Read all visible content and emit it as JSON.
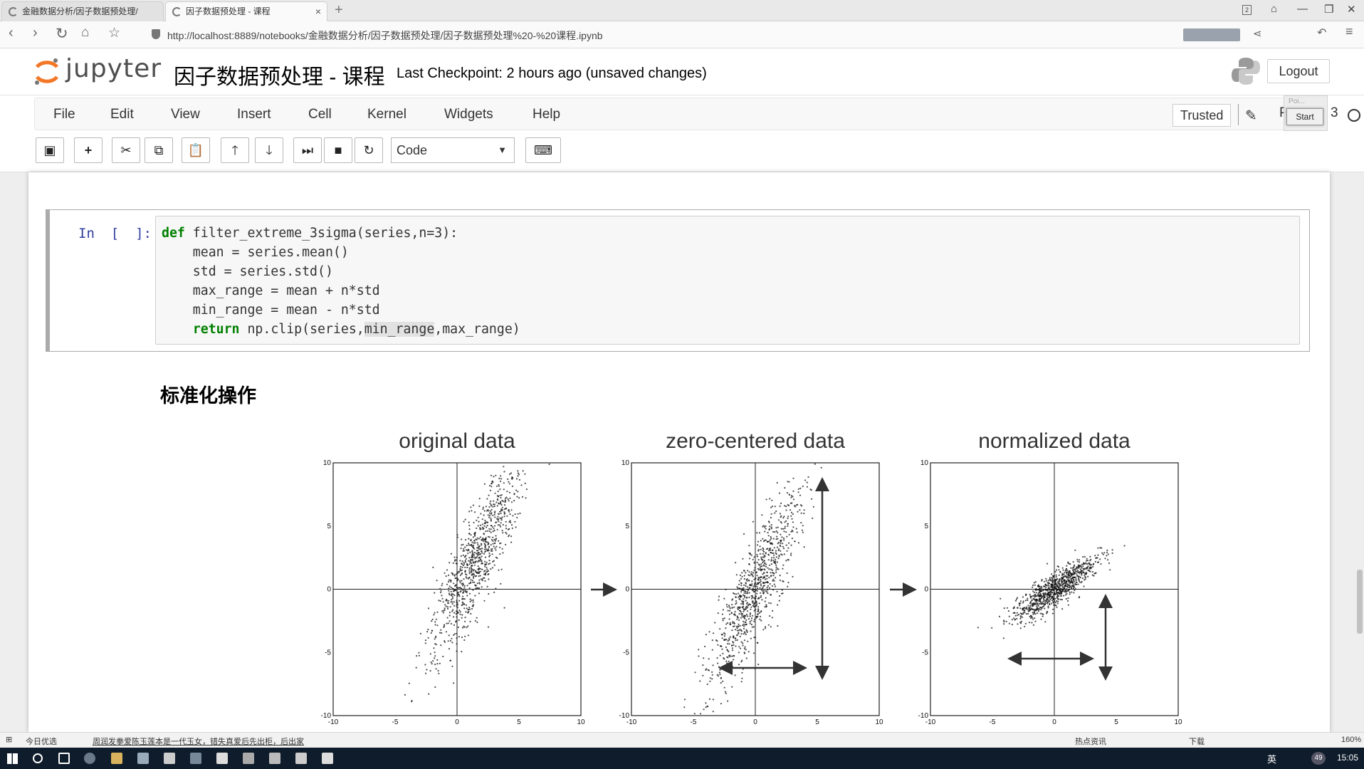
{
  "browser": {
    "tabs": [
      {
        "label": "金融数据分析/因子数据预处理/"
      },
      {
        "label": "因子数据预处理 - 课程"
      }
    ],
    "url": "http://localhost:8889/notebooks/金融数据分析/因子数据预处理/因子数据预处理%20-%20课程.ipynb"
  },
  "header": {
    "logo_text": "jupyter",
    "notebook_title": "因子数据预处理 - 课程",
    "checkpoint": "Last Checkpoint: 2 hours ago (unsaved changes)",
    "logout_label": "Logout"
  },
  "menu": {
    "items": [
      "File",
      "Edit",
      "View",
      "Insert",
      "Cell",
      "Kernel",
      "Widgets",
      "Help"
    ],
    "trusted_label": "Trusted",
    "kernel_name": "P",
    "kernel_num": "3",
    "start_popup": "Start",
    "popup_caption": "Poi..."
  },
  "toolbar": {
    "cell_type": "Code",
    "icons": [
      "save-icon",
      "plus-icon",
      "cut-icon",
      "copy-icon",
      "paste-icon",
      "arrow-up-icon",
      "arrow-down-icon",
      "run-icon",
      "stop-icon",
      "restart-icon",
      "keyboard-icon"
    ]
  },
  "cell": {
    "prompt": "In  [  ]:",
    "code": {
      "def_kw": "def",
      "line1": " filter_extreme_3sigma(series,n=3):",
      "line2": "    mean = series.mean()",
      "line3": "    std = series.std()",
      "line4": "    max_range = mean + n*std",
      "line5": "    min_range = mean - n*std",
      "return_kw": "return",
      "line6_pre": " np.clip(series,",
      "line6_hl": "min_range",
      "line6_post": ",max_range)"
    }
  },
  "markdown": {
    "heading": "标准化操作"
  },
  "chart_data": {
    "type": "scatter",
    "title": "",
    "panels": [
      {
        "title": "original data",
        "xlim": [
          -10,
          10
        ],
        "ylim": [
          -10,
          10
        ],
        "x_ticks": [
          "-10",
          "-5",
          "0",
          "5",
          "10"
        ],
        "y_ticks": [
          "10",
          "5",
          "0",
          "-5",
          "-10"
        ],
        "cloud": {
          "center": [
            1.5,
            2.2
          ],
          "spread_major": 4.2,
          "spread_minor": 0.9,
          "angle_deg": 66
        }
      },
      {
        "title": "zero-centered data",
        "xlim": [
          -10,
          10
        ],
        "ylim": [
          -10,
          10
        ],
        "x_ticks": [
          "-10",
          "-5",
          "0",
          "5",
          "10"
        ],
        "y_ticks": [
          "10",
          "5",
          "0",
          "-5",
          "-10"
        ],
        "cloud": {
          "center": [
            0,
            0
          ],
          "spread_major": 4.2,
          "spread_minor": 0.9,
          "angle_deg": 66
        }
      },
      {
        "title": "normalized data",
        "xlim": [
          -10,
          10
        ],
        "ylim": [
          -10,
          10
        ],
        "x_ticks": [
          "-10",
          "-5",
          "0",
          "5",
          "10"
        ],
        "y_ticks": [
          "10",
          "5",
          "0",
          "-5",
          "-10"
        ],
        "cloud": {
          "center": [
            0,
            0
          ],
          "spread_major": 2.0,
          "spread_minor": 0.55,
          "angle_deg": 36
        }
      }
    ]
  },
  "statusbar": {
    "left": "今日优选",
    "news": "周润发拳爱陈玉莲本是一代玉女，错失真爱后先出柜，后出家",
    "hot": "热点资讯",
    "download": "下载",
    "zoom": "160%"
  },
  "taskbar": {
    "clock": "15:05",
    "ime": "英",
    "badge": "49"
  },
  "colors": {
    "prompt_blue": "#303f9f",
    "keyword_green": "#008000",
    "taskbar": "#0f1c2b"
  }
}
